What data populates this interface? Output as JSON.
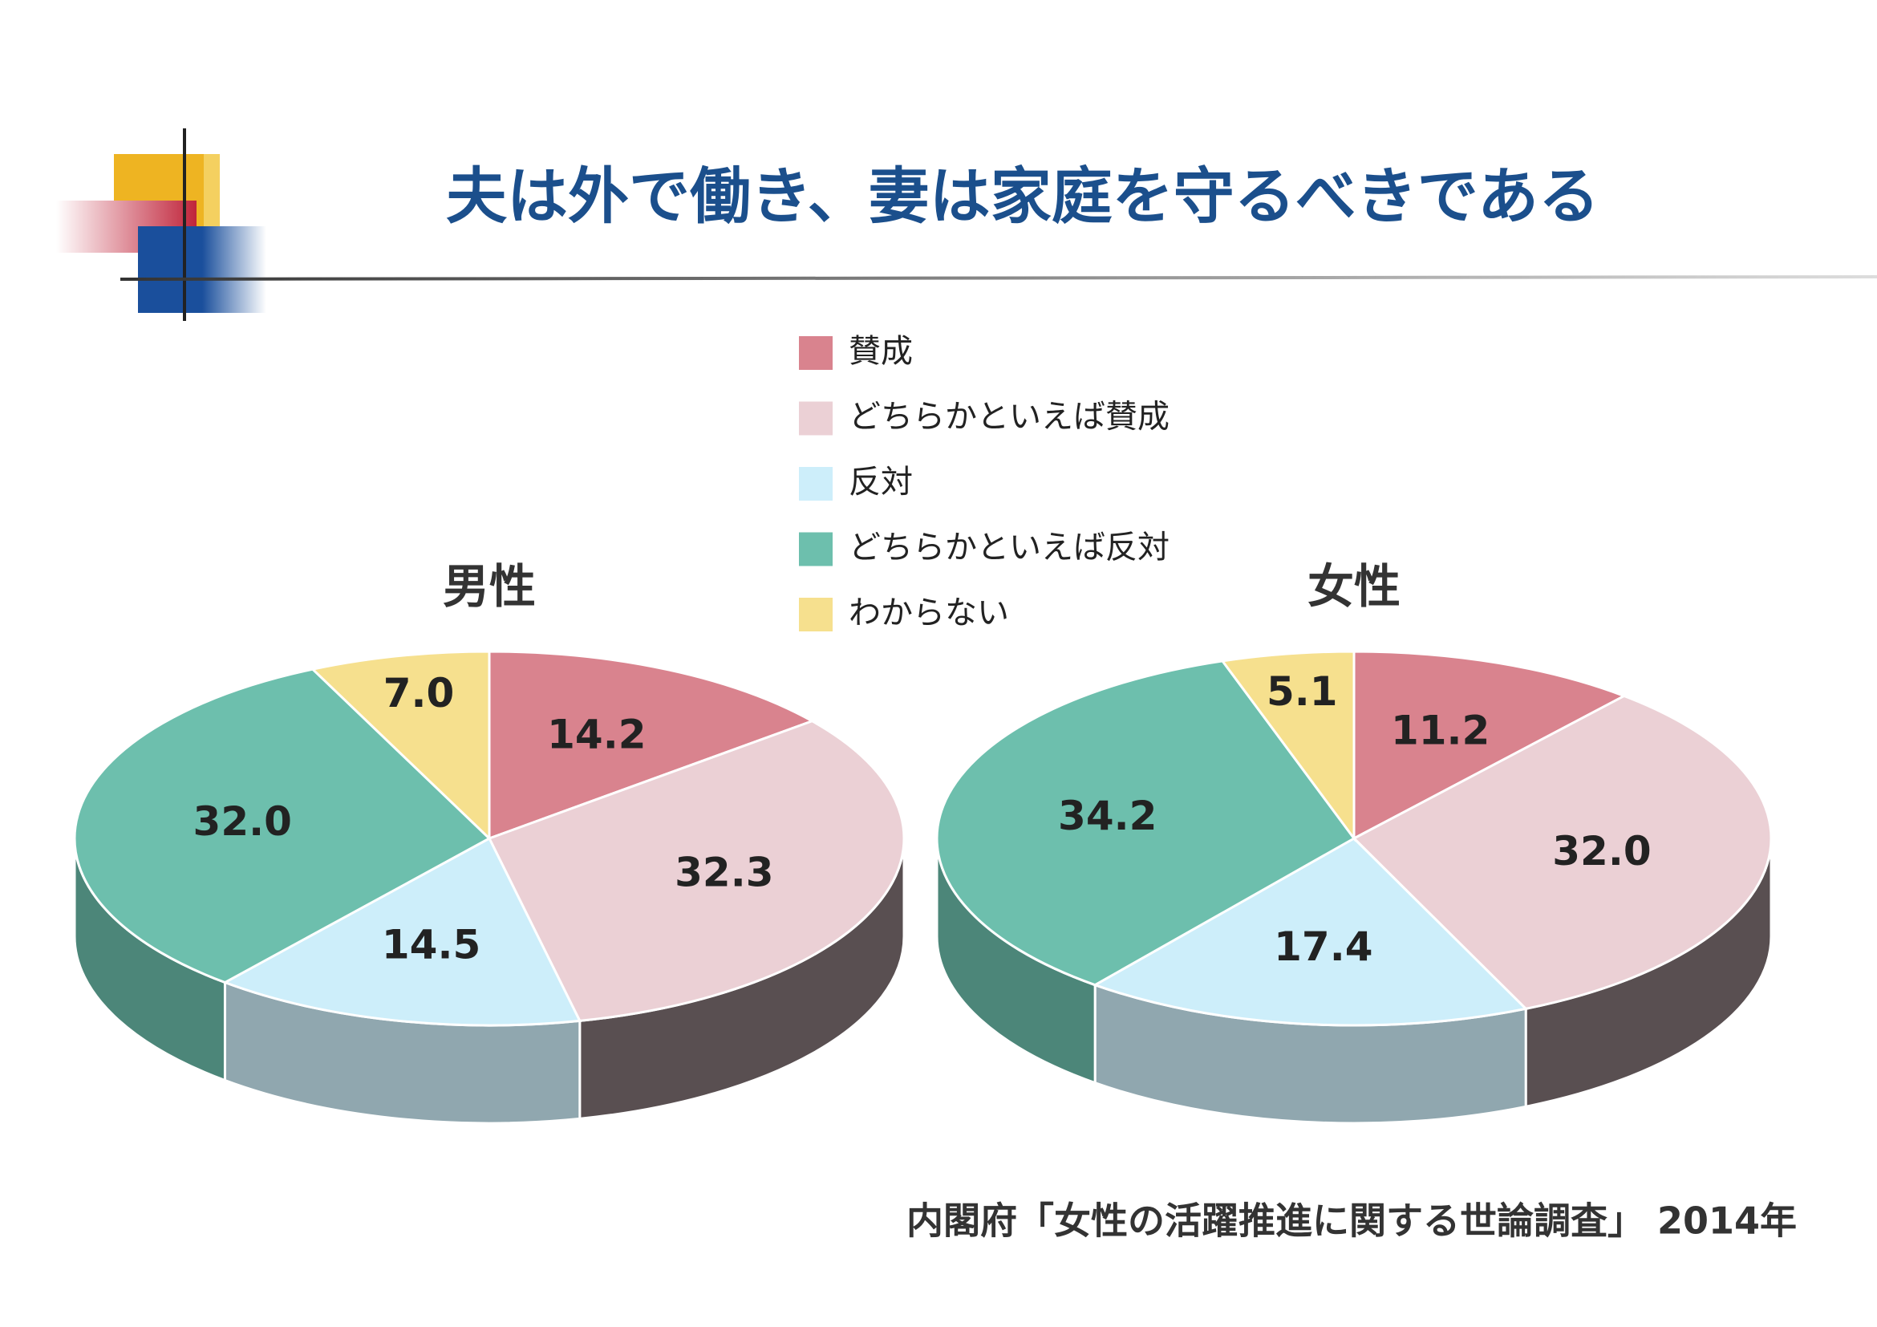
{
  "title": "夫は外で働き、妻は家庭を守るべきである",
  "source": "内閣府「女性の活躍推進に関する世論調査」 2014年",
  "chart_data": [
    {
      "type": "pie",
      "title": "男性",
      "categories": [
        "賛成",
        "どちらかといえば賛成",
        "反対",
        "どちらかといえば反対",
        "わからない"
      ],
      "colors": [
        "#d9838e",
        "#ebd0d5",
        "#cdeefa",
        "#6dbfad",
        "#f6e08e"
      ],
      "values": [
        14.2,
        32.3,
        14.5,
        32.0,
        7.0
      ],
      "value_labels": [
        "14.2",
        "32.3",
        "14.5",
        "32.0",
        "7.0"
      ]
    },
    {
      "type": "pie",
      "title": "女性",
      "categories": [
        "賛成",
        "どちらかといえば賛成",
        "反対",
        "どちらかといえば反対",
        "わからない"
      ],
      "colors": [
        "#d9838e",
        "#ebd0d5",
        "#cdeefa",
        "#6dbfad",
        "#f6e08e"
      ],
      "values": [
        11.2,
        32.0,
        17.4,
        34.2,
        5.1
      ],
      "value_labels": [
        "11.2",
        "32.0",
        "17.4",
        "34.2",
        "5.1"
      ]
    }
  ]
}
